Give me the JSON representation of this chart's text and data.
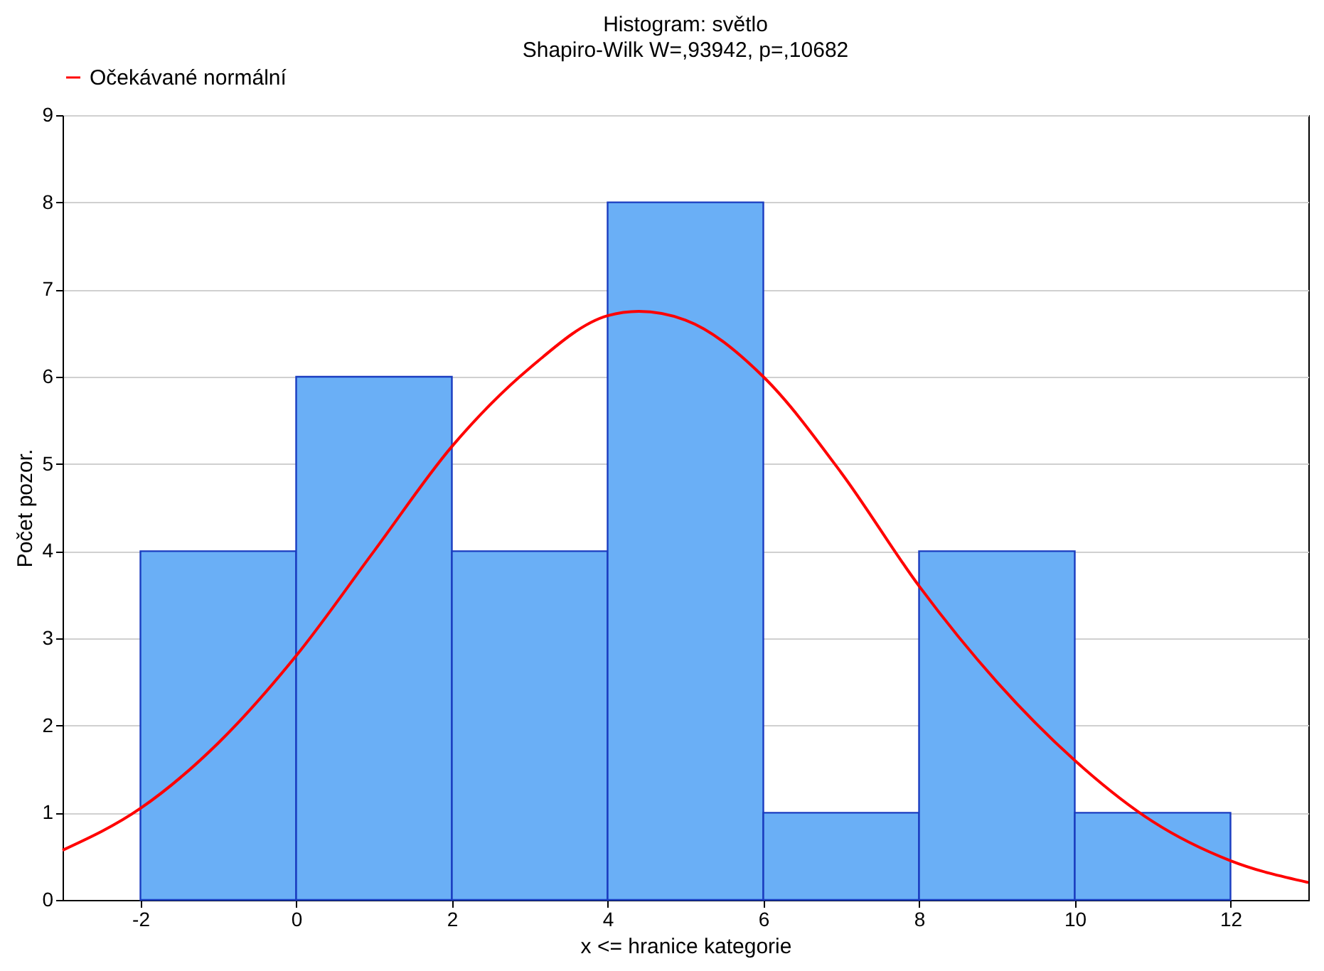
{
  "chart_data": {
    "type": "histogram",
    "title": "Histogram: světlo",
    "subtitle": "Shapiro-Wilk W=,93942, p=,10682",
    "xlabel": "x <= hranice kategorie",
    "ylabel": "Počet pozor.",
    "bins": [
      -2,
      0,
      2,
      4,
      6,
      8,
      10,
      12
    ],
    "series": [
      {
        "color": "#6aaff6",
        "values": [
          4,
          6,
          4,
          8,
          1,
          4,
          1
        ]
      },
      {
        "type": "line",
        "name": "Očekávané normální",
        "color": "#ff0000",
        "x": [
          -3,
          -2,
          -1,
          0,
          1,
          2,
          3,
          4,
          4.4,
          5,
          6,
          7,
          8,
          9,
          10,
          11,
          12,
          13
        ],
        "values": [
          0.57,
          1.05,
          1.8,
          2.8,
          4.0,
          5.2,
          6.1,
          6.7,
          6.75,
          6.65,
          6.0,
          4.9,
          3.6,
          2.5,
          1.6,
          0.9,
          0.45,
          0.2
        ]
      }
    ],
    "xlim": [
      -3,
      13
    ],
    "xticks": [
      -2,
      0,
      2,
      4,
      6,
      8,
      10,
      12
    ],
    "ylim": [
      0,
      9
    ],
    "yticks": [
      0,
      1,
      2,
      3,
      4,
      5,
      6,
      7,
      8,
      9
    ],
    "grid": "y",
    "legend": "top"
  }
}
